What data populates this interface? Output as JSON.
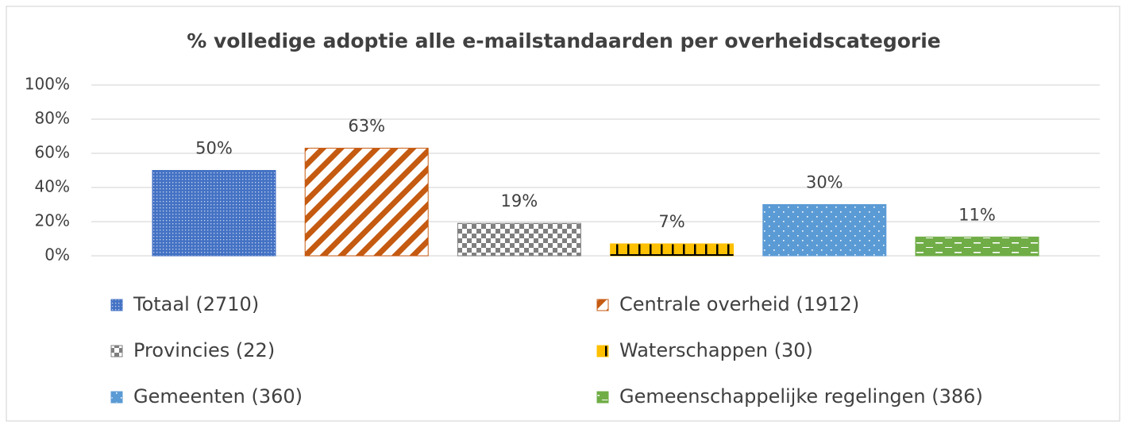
{
  "chart_data": {
    "type": "bar",
    "title": "% volledige adoptie alle e-mailstandaarden per overheidscategorie",
    "series": [
      {
        "name": "Totaal (2710)",
        "color": "#4472c4",
        "pattern": "fine-dots",
        "values": [
          50
        ],
        "value_labels": [
          "50%"
        ]
      },
      {
        "name": "Centrale overheid (1912)",
        "color": "#c55a11",
        "pattern": "diagonal",
        "values": [
          63
        ],
        "value_labels": [
          "63%"
        ]
      },
      {
        "name": "Provincies (22)",
        "color": "#7f7f7f",
        "pattern": "checker",
        "values": [
          19
        ],
        "value_labels": [
          "19%"
        ]
      },
      {
        "name": "Waterschappen (30)",
        "color": "#ffc000",
        "pattern": "vertical",
        "values": [
          7
        ],
        "value_labels": [
          "7%"
        ]
      },
      {
        "name": "Gemeenten (360)",
        "color": "#5b9bd5",
        "pattern": "sparse-dots",
        "values": [
          30
        ],
        "value_labels": [
          "30%"
        ]
      },
      {
        "name": "Gemeenschappelijke regelingen (386)",
        "color": "#70ad47",
        "pattern": "dashes",
        "values": [
          11
        ],
        "value_labels": [
          "11%"
        ]
      }
    ],
    "ylim": [
      0,
      100
    ],
    "yticks": [
      {
        "value": 0,
        "label": "0%"
      },
      {
        "value": 20,
        "label": "20%"
      },
      {
        "value": 40,
        "label": "40%"
      },
      {
        "value": 60,
        "label": "60%"
      },
      {
        "value": 80,
        "label": "80%"
      },
      {
        "value": 100,
        "label": "100%"
      }
    ],
    "grid": true,
    "legend": "bottom"
  }
}
